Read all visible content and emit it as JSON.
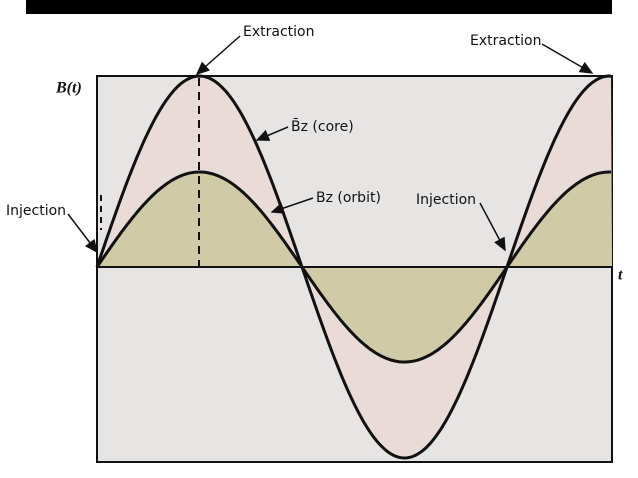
{
  "labels": {
    "y_axis": "B(t)",
    "x_axis": "t",
    "extraction_1": "Extraction",
    "extraction_2": "Extraction",
    "injection_1": "Injection",
    "injection_2": "Injection",
    "core": "B̄z (core)",
    "orbit": "Bz (orbit)"
  }
}
